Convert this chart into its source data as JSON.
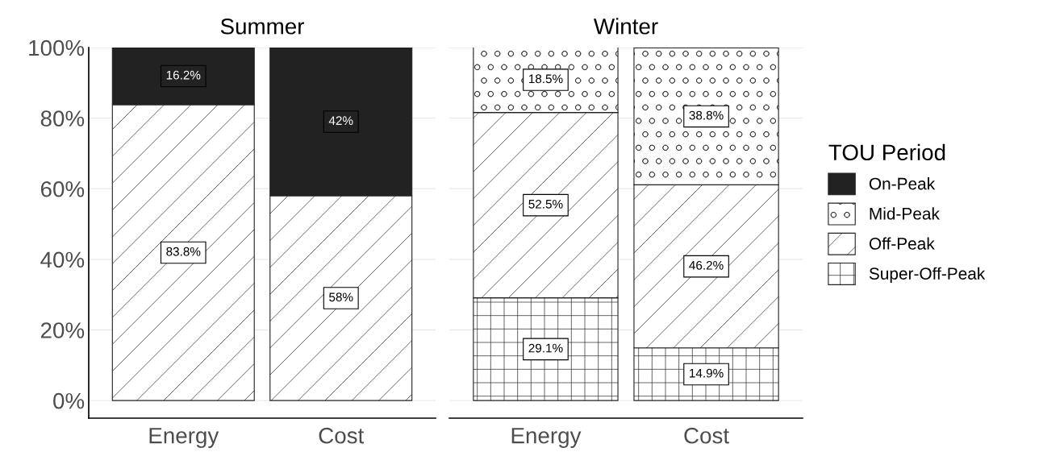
{
  "chart_data": [
    {
      "type": "bar",
      "title": "Summer",
      "categories": [
        "Energy",
        "Cost"
      ],
      "stacked": true,
      "ylim": [
        -5,
        100
      ],
      "yticks": [
        {
          "value": 0,
          "label": "0%"
        },
        {
          "value": 20,
          "label": "20%"
        },
        {
          "value": 40,
          "label": "40%"
        },
        {
          "value": 60,
          "label": "60%"
        },
        {
          "value": 80,
          "label": "80%"
        },
        {
          "value": 100,
          "label": "100%"
        }
      ],
      "grid": "y",
      "series": [
        {
          "color": "#ffffff",
          "values": [
            null,
            null
          ],
          "value_labels": [
            null,
            null
          ]
        },
        {
          "color": "#ffffff",
          "values": [
            83.8,
            58
          ],
          "value_labels": [
            "83.8%",
            "58%"
          ]
        },
        {
          "color": "#ffffff",
          "values": [
            null,
            null
          ],
          "value_labels": [
            null,
            null
          ]
        },
        {
          "color": "#222222",
          "values": [
            16.2,
            42
          ],
          "value_labels": [
            "16.2%",
            "42%"
          ]
        }
      ]
    },
    {
      "type": "bar",
      "title": "Winter",
      "categories": [
        "Energy",
        "Cost"
      ],
      "stacked": true,
      "ylim": [
        -5,
        100
      ],
      "yticks": [
        0,
        20,
        40,
        60,
        80,
        100
      ],
      "tick_labels": "x",
      "grid": "y",
      "legend": "right",
      "legend_title": "TOU Period",
      "series": [
        {
          "name": "Super-Off-Peak",
          "color": "#ffffff",
          "values": [
            29.1,
            14.9
          ],
          "value_labels": [
            "29.1%",
            "14.9%"
          ]
        },
        {
          "name": "Off-Peak",
          "color": "#ffffff",
          "values": [
            52.5,
            46.2
          ],
          "value_labels": [
            "52.5%",
            "46.2%"
          ]
        },
        {
          "name": "Mid-Peak",
          "color": "#ffffff",
          "values": [
            18.5,
            38.8
          ],
          "value_labels": [
            "18.5%",
            "38.8%"
          ]
        },
        {
          "name": "On-Peak",
          "color": "#222222",
          "values": [
            null,
            null
          ],
          "value_labels": [
            null,
            null
          ]
        }
      ]
    }
  ]
}
